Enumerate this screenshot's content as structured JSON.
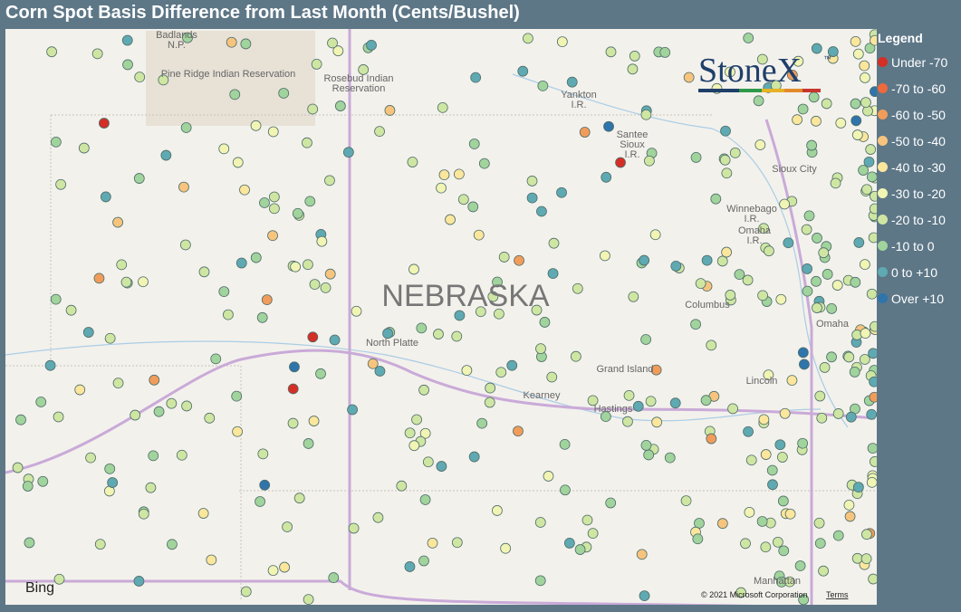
{
  "header": {
    "title": "Corn Spot Basis Difference from Last Month (Cents/Bushel)"
  },
  "legend": {
    "title": "Legend",
    "items": [
      {
        "label": "Under -70",
        "color": "#d42e25"
      },
      {
        "label": "-70 to -60",
        "color": "#ee6a3c"
      },
      {
        "label": "-60 to -50",
        "color": "#f29c5a"
      },
      {
        "label": "-50 to -40",
        "color": "#f7c47e"
      },
      {
        "label": "-40 to -30",
        "color": "#fbe69c"
      },
      {
        "label": "-30 to -20",
        "color": "#f2f4b4"
      },
      {
        "label": "-20 to -10",
        "color": "#cfe6a3"
      },
      {
        "label": "-10 to 0",
        "color": "#a1d39c"
      },
      {
        "label": "0 to +10",
        "color": "#5fa9b2"
      },
      {
        "label": "Over +10",
        "color": "#2f74aa"
      }
    ]
  },
  "map": {
    "places": [
      [
        "Badlands",
        "N.P."
      ],
      [
        "Pine Ridge Indian Reservation"
      ],
      [
        "Rosebud Indian",
        "Reservation"
      ],
      [
        "Yankton",
        "I.R."
      ],
      [
        "Santee",
        "Sioux",
        "I.R."
      ],
      [
        "Sioux City"
      ],
      [
        "Winnebago",
        "I.R."
      ],
      [
        "Omaha",
        "I.R."
      ],
      [
        "North Platte"
      ],
      [
        "Columbus"
      ],
      [
        "Omaha"
      ],
      [
        "Grand Island"
      ],
      [
        "Kearney"
      ],
      [
        "Hastings"
      ],
      [
        "Lincoln"
      ],
      [
        "Manhattan"
      ]
    ],
    "state_label": "NEBRASKA",
    "logo": "StoneX",
    "logo_mark": "™",
    "provider": "Bing",
    "attribution": "© 2021 Microsoft Corporation",
    "terms": "Terms"
  }
}
